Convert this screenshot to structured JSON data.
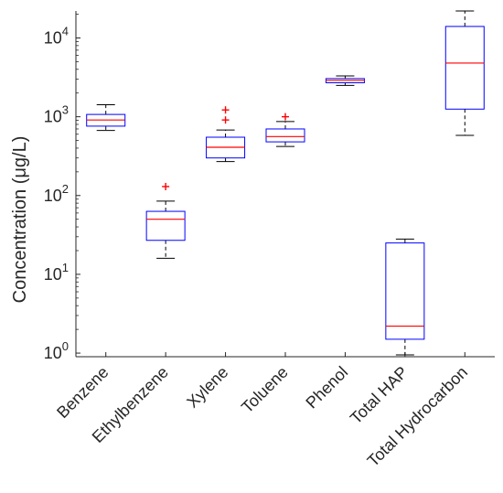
{
  "chart_data": {
    "type": "box",
    "ylabel": "Concentration (μg/L)",
    "xlabel": "",
    "yscale": "log",
    "ylim": [
      0.9,
      22000
    ],
    "yticks": [
      {
        "value": 1,
        "base": "10",
        "exp": "0"
      },
      {
        "value": 10,
        "base": "10",
        "exp": "1"
      },
      {
        "value": 100,
        "base": "10",
        "exp": "2"
      },
      {
        "value": 1000,
        "base": "10",
        "exp": "3"
      },
      {
        "value": 10000,
        "base": "10",
        "exp": "4"
      }
    ],
    "categories": [
      "Benzene",
      "Ethylbenzene",
      "Xylene",
      "Toluene",
      "Phenol",
      "Total HAP",
      "Total Hydrocarbon"
    ],
    "boxes": [
      {
        "category": "Benzene",
        "whisker_low": 670,
        "q1": 760,
        "median": 910,
        "q3": 1070,
        "whisker_high": 1420,
        "outliers": []
      },
      {
        "category": "Ethylbenzene",
        "whisker_low": 16,
        "q1": 27,
        "median": 50,
        "q3": 63,
        "whisker_high": 85,
        "outliers": [
          130
        ]
      },
      {
        "category": "Xylene",
        "whisker_low": 270,
        "q1": 300,
        "median": 410,
        "q3": 550,
        "whisker_high": 680,
        "outliers": [
          910,
          1220
        ]
      },
      {
        "category": "Toluene",
        "whisker_low": 420,
        "q1": 480,
        "median": 560,
        "q3": 700,
        "whisker_high": 870,
        "outliers": [
          1000
        ]
      },
      {
        "category": "Phenol",
        "whisker_low": 2500,
        "q1": 2700,
        "median": 2900,
        "q3": 3050,
        "whisker_high": 3300,
        "outliers": []
      },
      {
        "category": "Total HAP",
        "whisker_low": 0.95,
        "q1": 1.5,
        "median": 2.2,
        "q3": 25,
        "whisker_high": 28,
        "outliers": []
      },
      {
        "category": "Total Hydrocarbon",
        "whisker_low": 580,
        "q1": 1250,
        "median": 4800,
        "q3": 14000,
        "whisker_high": 22000,
        "outliers": []
      }
    ],
    "colors": {
      "box": "#0000ff",
      "median": "#ff0000",
      "whisker": "#000000",
      "outlier": "#ff0000",
      "axis": "#262626"
    },
    "grid": false,
    "legend": "none"
  }
}
